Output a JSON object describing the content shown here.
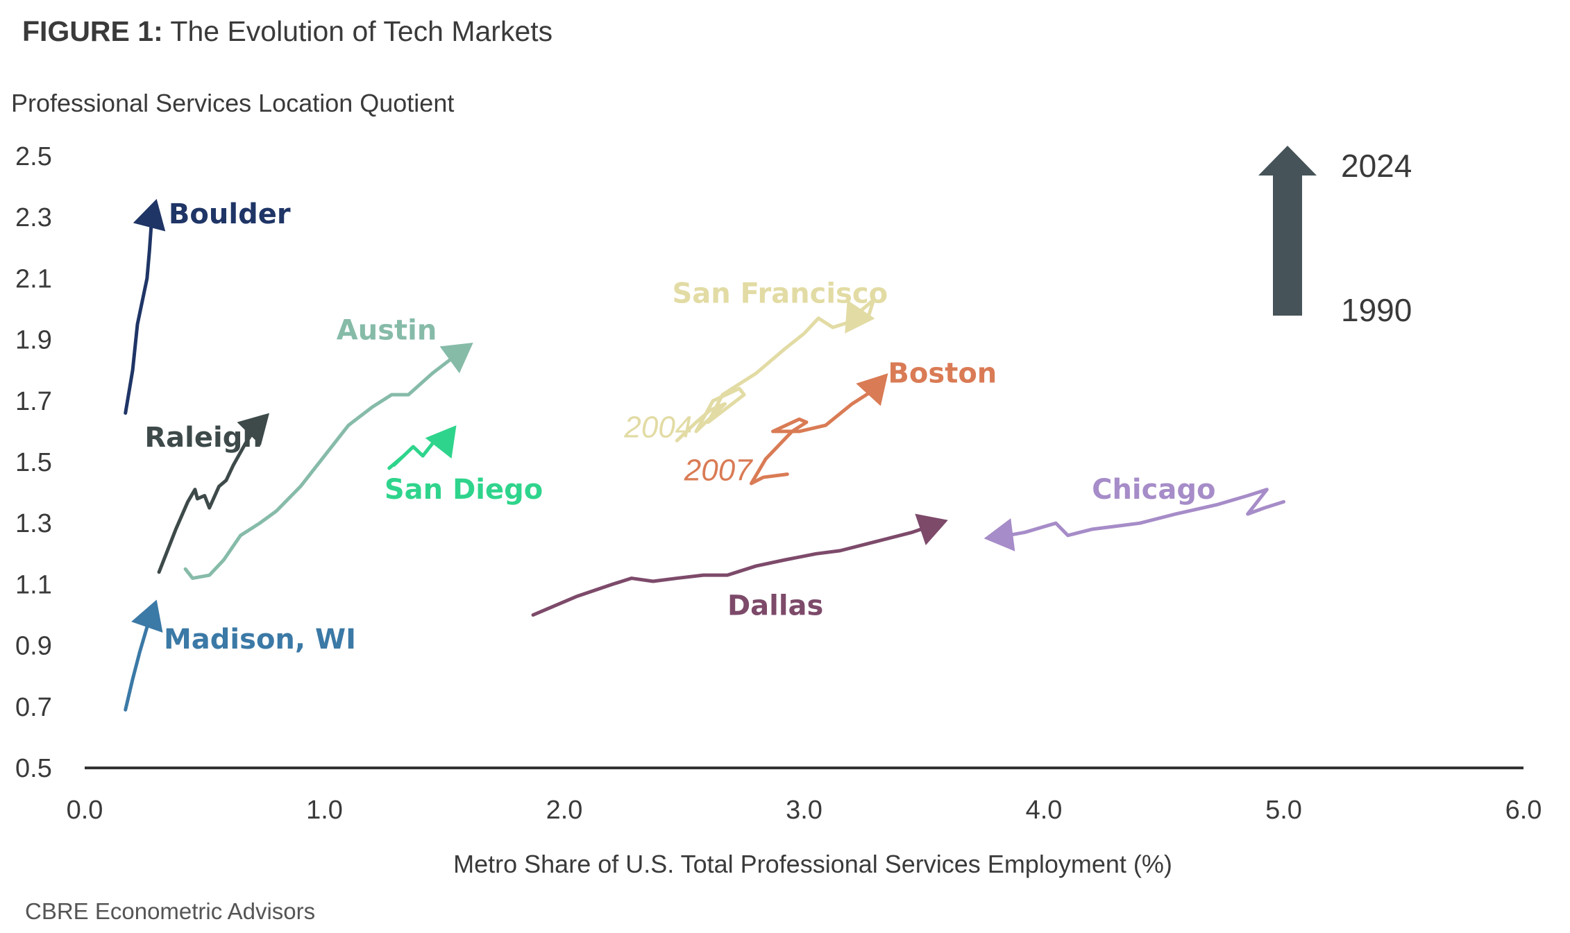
{
  "figure": {
    "label": "FIGURE 1:",
    "title": "The Evolution of Tech Markets"
  },
  "source": "CBRE Econometric Advisors",
  "legend": {
    "start_year": "1990",
    "end_year": "2024",
    "arrow_color": "#465358"
  },
  "chart_data": {
    "type": "line",
    "ylabel": "Professional Services Location Quotient",
    "xlabel": "Metro Share of U.S. Total Professional Services Employment (%)",
    "xlim": [
      0.0,
      6.0
    ],
    "ylim": [
      0.5,
      2.5
    ],
    "x_ticks": [
      "0.0",
      "1.0",
      "2.0",
      "3.0",
      "4.0",
      "5.0",
      "6.0"
    ],
    "y_ticks": [
      "0.5",
      "0.7",
      "0.9",
      "1.1",
      "1.3",
      "1.5",
      "1.7",
      "1.9",
      "2.1",
      "2.3",
      "2.5"
    ],
    "grid": false,
    "annotations": [
      {
        "text": "2004",
        "x": 2.25,
        "y": 1.58,
        "color": "#e2dba4"
      },
      {
        "text": "2007",
        "x": 2.5,
        "y": 1.44,
        "color": "#d97b55"
      }
    ],
    "series": [
      {
        "name": "Boulder",
        "color": "#1f3566",
        "label_x": 0.35,
        "label_y": 2.28,
        "points": [
          [
            0.17,
            1.66
          ],
          [
            0.2,
            1.8
          ],
          [
            0.22,
            1.95
          ],
          [
            0.26,
            2.1
          ],
          [
            0.27,
            2.19
          ],
          [
            0.28,
            2.3
          ],
          [
            0.3,
            2.36
          ]
        ]
      },
      {
        "name": "Madison, WI",
        "color": "#3b79a6",
        "label_x": 0.33,
        "label_y": 0.89,
        "points": [
          [
            0.17,
            0.69
          ],
          [
            0.2,
            0.79
          ],
          [
            0.23,
            0.88
          ],
          [
            0.26,
            0.96
          ],
          [
            0.3,
            1.05
          ]
        ]
      },
      {
        "name": "Raleigh",
        "color": "#3e4a4a",
        "label_x": 0.25,
        "label_y": 1.55,
        "points": [
          [
            0.31,
            1.14
          ],
          [
            0.34,
            1.2
          ],
          [
            0.38,
            1.28
          ],
          [
            0.43,
            1.37
          ],
          [
            0.46,
            1.41
          ],
          [
            0.47,
            1.38
          ],
          [
            0.5,
            1.39
          ],
          [
            0.52,
            1.35
          ],
          [
            0.56,
            1.42
          ],
          [
            0.59,
            1.44
          ],
          [
            0.62,
            1.49
          ],
          [
            0.67,
            1.56
          ],
          [
            0.72,
            1.62
          ],
          [
            0.77,
            1.66
          ]
        ]
      },
      {
        "name": "Austin",
        "color": "#86bba8",
        "label_x": 1.05,
        "label_y": 1.9,
        "points": [
          [
            0.42,
            1.15
          ],
          [
            0.45,
            1.12
          ],
          [
            0.52,
            1.13
          ],
          [
            0.58,
            1.18
          ],
          [
            0.65,
            1.26
          ],
          [
            0.73,
            1.3
          ],
          [
            0.8,
            1.34
          ],
          [
            0.9,
            1.42
          ],
          [
            1.0,
            1.52
          ],
          [
            1.1,
            1.62
          ],
          [
            1.2,
            1.68
          ],
          [
            1.28,
            1.72
          ],
          [
            1.35,
            1.72
          ],
          [
            1.45,
            1.79
          ],
          [
            1.55,
            1.85
          ],
          [
            1.62,
            1.89
          ]
        ]
      },
      {
        "name": "San Diego",
        "color": "#2fd48c",
        "label_x": 1.25,
        "label_y": 1.38,
        "points": [
          [
            1.27,
            1.48
          ],
          [
            1.33,
            1.52
          ],
          [
            1.29,
            1.49
          ],
          [
            1.37,
            1.55
          ],
          [
            1.41,
            1.52
          ],
          [
            1.45,
            1.56
          ],
          [
            1.51,
            1.6
          ],
          [
            1.47,
            1.57
          ],
          [
            1.53,
            1.6
          ],
          [
            1.55,
            1.62
          ]
        ]
      },
      {
        "name": "San Francisco",
        "color": "#e2dba4",
        "label_x": 2.45,
        "label_y": 2.02,
        "points": [
          [
            2.47,
            1.57
          ],
          [
            2.55,
            1.63
          ],
          [
            2.61,
            1.67
          ],
          [
            2.67,
            1.69
          ],
          [
            2.55,
            1.6
          ],
          [
            2.62,
            1.7
          ],
          [
            2.73,
            1.74
          ],
          [
            2.75,
            1.72
          ],
          [
            2.6,
            1.63
          ],
          [
            2.66,
            1.72
          ],
          [
            2.8,
            1.79
          ],
          [
            2.92,
            1.87
          ],
          [
            3.0,
            1.92
          ],
          [
            3.06,
            1.97
          ],
          [
            3.12,
            1.94
          ],
          [
            3.2,
            1.96
          ],
          [
            3.27,
            1.98
          ],
          [
            3.29,
            2.03
          ],
          [
            3.23,
            1.99
          ],
          [
            3.17,
            1.92
          ]
        ]
      },
      {
        "name": "Boston",
        "color": "#d97b55",
        "label_x": 3.35,
        "label_y": 1.76,
        "points": [
          [
            2.93,
            1.46
          ],
          [
            2.83,
            1.45
          ],
          [
            2.78,
            1.43
          ],
          [
            2.84,
            1.51
          ],
          [
            2.95,
            1.6
          ],
          [
            3.01,
            1.63
          ],
          [
            2.98,
            1.64
          ],
          [
            2.87,
            1.6
          ],
          [
            2.98,
            1.6
          ],
          [
            3.09,
            1.62
          ],
          [
            3.2,
            1.69
          ],
          [
            3.28,
            1.73
          ],
          [
            3.35,
            1.79
          ]
        ]
      },
      {
        "name": "Dallas",
        "color": "#7d4a6a",
        "label_x": 2.68,
        "label_y": 1.0,
        "points": [
          [
            1.87,
            1.0
          ],
          [
            1.93,
            1.02
          ],
          [
            2.05,
            1.06
          ],
          [
            2.2,
            1.1
          ],
          [
            2.28,
            1.12
          ],
          [
            2.37,
            1.11
          ],
          [
            2.47,
            1.12
          ],
          [
            2.58,
            1.13
          ],
          [
            2.68,
            1.13
          ],
          [
            2.8,
            1.16
          ],
          [
            2.92,
            1.18
          ],
          [
            3.05,
            1.2
          ],
          [
            3.15,
            1.21
          ],
          [
            3.3,
            1.24
          ],
          [
            3.45,
            1.27
          ],
          [
            3.6,
            1.31
          ]
        ]
      },
      {
        "name": "Chicago",
        "color": "#a68cc8",
        "label_x": 4.2,
        "label_y": 1.38,
        "points": [
          [
            5.0,
            1.37
          ],
          [
            4.92,
            1.35
          ],
          [
            4.85,
            1.33
          ],
          [
            4.88,
            1.36
          ],
          [
            4.93,
            1.41
          ],
          [
            4.85,
            1.39
          ],
          [
            4.72,
            1.36
          ],
          [
            4.55,
            1.33
          ],
          [
            4.4,
            1.3
          ],
          [
            4.3,
            1.29
          ],
          [
            4.2,
            1.28
          ],
          [
            4.1,
            1.26
          ],
          [
            4.05,
            1.3
          ],
          [
            3.92,
            1.27
          ],
          [
            3.85,
            1.26
          ],
          [
            3.75,
            1.25
          ]
        ]
      }
    ]
  }
}
